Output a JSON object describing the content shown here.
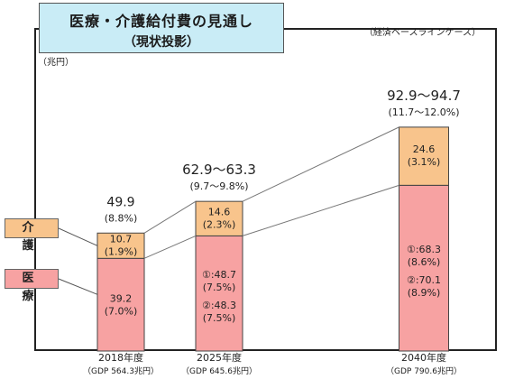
{
  "title": {
    "line1": "医療・介護給付費の見通し",
    "line2": "（現状投影）"
  },
  "case_label": "（経済ベースラインケース）",
  "unit_label": "（兆円）",
  "legend": {
    "kaigo": "介　護",
    "iryo": "医　療"
  },
  "colors": {
    "kaigo": "#f8c48c",
    "iryo": "#f7a2a2",
    "line": "#777777"
  },
  "chart_data": {
    "type": "bar",
    "stacked": true,
    "categories": [
      "2018年度",
      "2025年度",
      "2040年度"
    ],
    "gdp_labels": [
      "（GDP 564.3兆円）",
      "（GDP 645.6兆円）",
      "（GDP 790.6兆円）"
    ],
    "series": [
      {
        "name": "医療",
        "values": [
          39.2,
          48.7,
          70.1
        ]
      },
      {
        "name": "介護",
        "values": [
          10.7,
          14.6,
          24.6
        ]
      }
    ],
    "segment_labels": {
      "医療": [
        [
          "39.2",
          "(7.0%)"
        ],
        [
          "①:48.7",
          "(7.5%)",
          "②:48.3",
          "(7.5%)"
        ],
        [
          "①:68.3",
          "(8.6%)",
          "②:70.1",
          "(8.9%)"
        ]
      ],
      "介護": [
        [
          "10.7",
          "(1.9%)"
        ],
        [
          "14.6",
          "(2.3%)"
        ],
        [
          "24.6",
          "(3.1%)"
        ]
      ]
    },
    "totals": [
      {
        "value": "49.9",
        "pct": "(8.8%)"
      },
      {
        "value": "62.9～63.3",
        "pct": "(9.7～9.8%)"
      },
      {
        "value": "92.9～94.7",
        "pct": "(11.7～12.0%)"
      }
    ],
    "ylim": [
      0,
      100
    ]
  }
}
